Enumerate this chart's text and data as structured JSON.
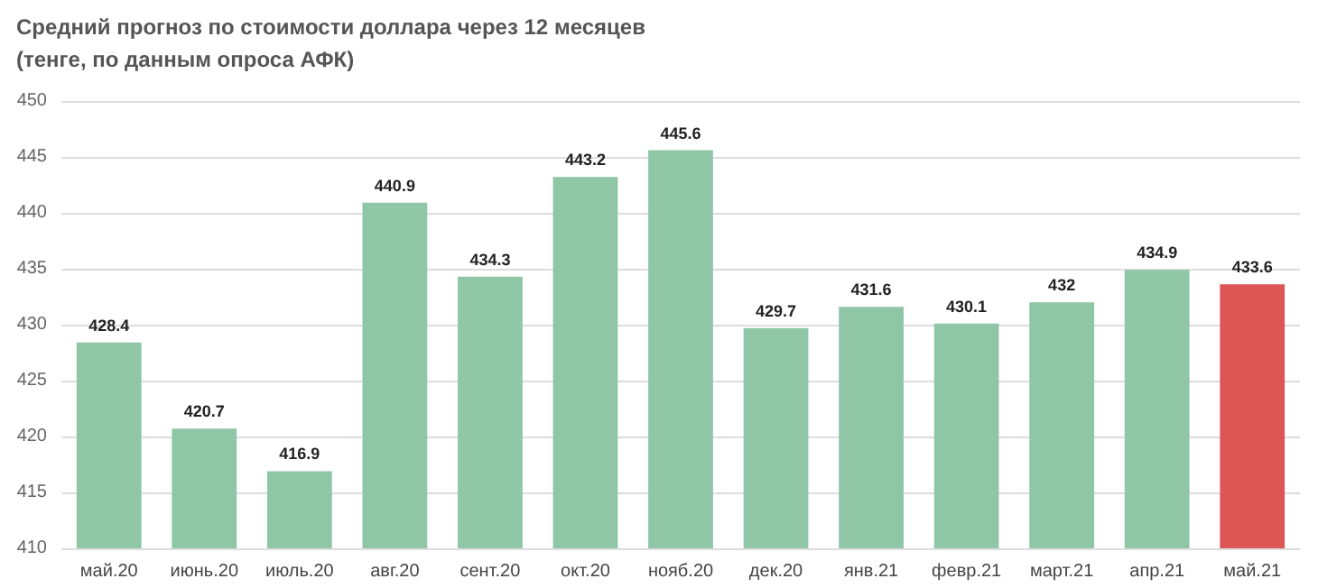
{
  "chart_data": {
    "type": "bar",
    "title": "Средний прогноз по стоимости доллара через 12 месяцев",
    "subtitle": "(тенге, по данным опроса АФК)",
    "categories": [
      "май.20",
      "июнь.20",
      "июль.20",
      "авг.20",
      "сент.20",
      "окт.20",
      "нояб.20",
      "дек.20",
      "янв.21",
      "февр.21",
      "март.21",
      "апр.21",
      "май.21"
    ],
    "values": [
      428.4,
      420.7,
      416.9,
      440.9,
      434.3,
      443.2,
      445.6,
      429.7,
      431.6,
      430.1,
      432,
      434.9,
      433.6
    ],
    "colors": [
      "#8fc6a6",
      "#8fc6a6",
      "#8fc6a6",
      "#8fc6a6",
      "#8fc6a6",
      "#8fc6a6",
      "#8fc6a6",
      "#8fc6a6",
      "#8fc6a6",
      "#8fc6a6",
      "#8fc6a6",
      "#8fc6a6",
      "#de5556"
    ],
    "ylim": [
      410,
      450
    ],
    "yticks": [
      410,
      415,
      420,
      425,
      430,
      435,
      440,
      445,
      450
    ],
    "grid": "y",
    "data_labels": true
  }
}
